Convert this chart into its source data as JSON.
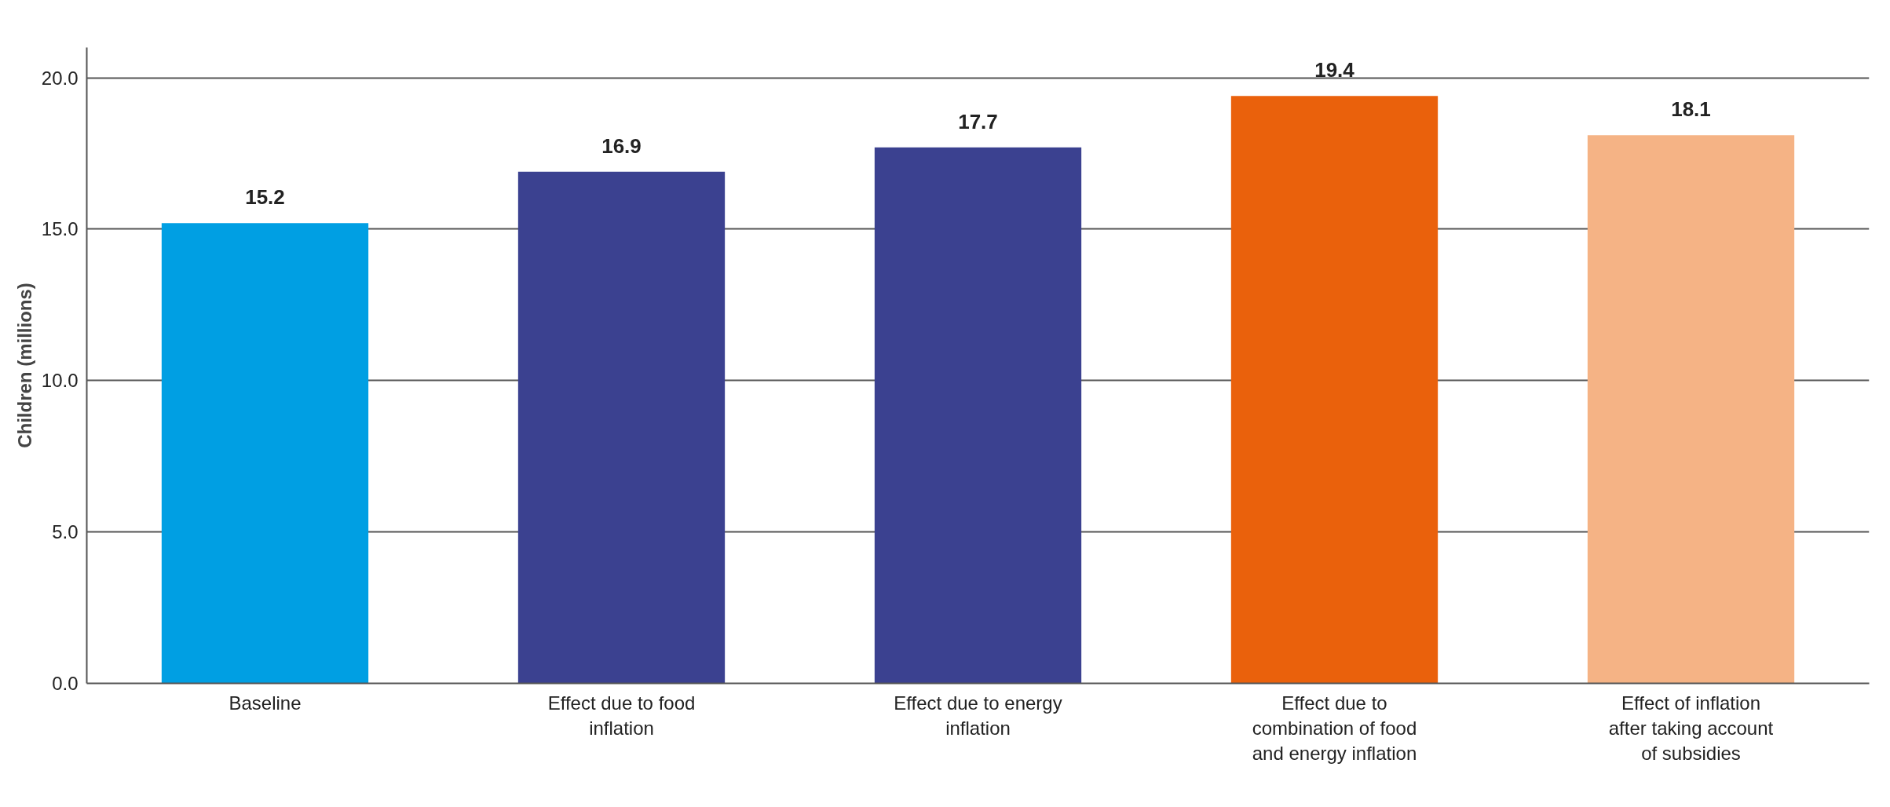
{
  "chart_data": {
    "type": "bar",
    "ylabel": "Children (millions)",
    "categories": [
      "Baseline",
      "Effect due to food inflation",
      "Effect due to energy inflation",
      "Effect due to combination of food and energy inflation",
      "Effect of inflation after taking account of subsidies"
    ],
    "values": [
      15.2,
      16.9,
      17.7,
      19.4,
      18.1
    ],
    "colors": [
      "#009fe3",
      "#3b4190",
      "#3b4190",
      "#ea610c",
      "#f5b385"
    ],
    "ylim": [
      0,
      21
    ],
    "yticks": [
      {
        "value": 0,
        "label": "0.0"
      },
      {
        "value": 5,
        "label": "5.0"
      },
      {
        "value": 10,
        "label": "10.0"
      },
      {
        "value": 15,
        "label": "15.0"
      },
      {
        "value": 20,
        "label": "20.0"
      }
    ],
    "grid": "y",
    "data_labels": true
  }
}
